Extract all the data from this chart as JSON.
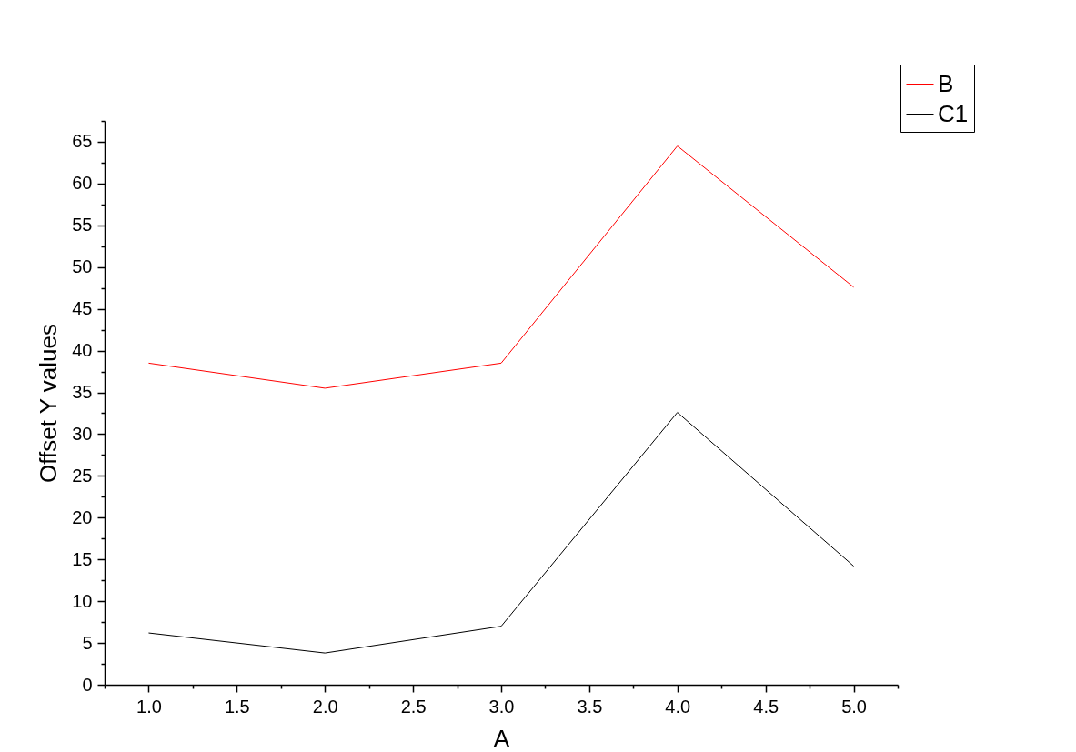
{
  "chart_data": {
    "type": "line",
    "xlabel": "A",
    "ylabel": "Offset Y values",
    "x": [
      1,
      2,
      3,
      4,
      5
    ],
    "series": [
      {
        "name": "B",
        "color": "#ff0000",
        "values": [
          38.5,
          35.5,
          38.5,
          64.5,
          47.6
        ]
      },
      {
        "name": "C1",
        "color": "#000000",
        "values": [
          6.2,
          3.8,
          7.0,
          32.6,
          14.2
        ]
      }
    ],
    "xlim": [
      0.75,
      5.25
    ],
    "xticks": [
      {
        "value": 0.75,
        "label": null
      },
      {
        "value": 1,
        "label": "1.0"
      },
      {
        "value": 1.25,
        "label": null
      },
      1.5,
      {
        "value": 1.75,
        "label": null
      },
      {
        "value": 2,
        "label": "2.0"
      },
      {
        "value": 2.25,
        "label": null
      },
      2.5,
      {
        "value": 2.75,
        "label": null
      },
      {
        "value": 3,
        "label": "3.0"
      },
      {
        "value": 3.25,
        "label": null
      },
      3.5,
      {
        "value": 3.75,
        "label": null
      },
      {
        "value": 4,
        "label": "4.0"
      },
      {
        "value": 4.25,
        "label": null
      },
      4.5,
      {
        "value": 4.75,
        "label": null
      },
      {
        "value": 5,
        "label": "5.0"
      },
      {
        "value": 5.25,
        "label": null
      }
    ],
    "ylim": [
      0,
      67.5
    ],
    "yticks": [
      0,
      {
        "value": 2.5,
        "label": null
      },
      5,
      {
        "value": 7.5,
        "label": null
      },
      10,
      {
        "value": 12.5,
        "label": null
      },
      15,
      {
        "value": 17.5,
        "label": null
      },
      20,
      {
        "value": 22.5,
        "label": null
      },
      25,
      {
        "value": 27.5,
        "label": null
      },
      30,
      {
        "value": 32.5,
        "label": null
      },
      35,
      {
        "value": 37.5,
        "label": null
      },
      40,
      {
        "value": 42.5,
        "label": null
      },
      45,
      {
        "value": 47.5,
        "label": null
      },
      50,
      {
        "value": 52.5,
        "label": null
      },
      55,
      {
        "value": 57.5,
        "label": null
      },
      60,
      {
        "value": 62.5,
        "label": null
      },
      65,
      {
        "value": 67.5,
        "label": null
      }
    ],
    "grid": false,
    "legend": "top right",
    "marker": "none",
    "line_style": "solid"
  }
}
